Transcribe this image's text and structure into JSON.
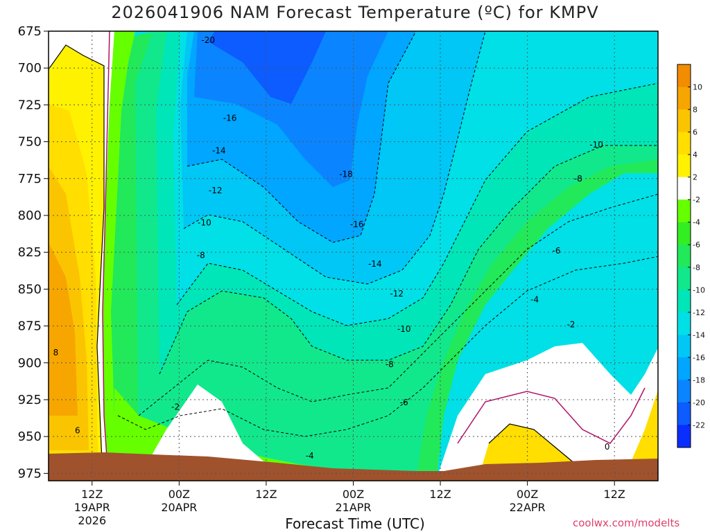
{
  "chart_data": {
    "type": "heatmap",
    "title": "2026041906 NAM Forecast Temperature (ºC) for KMPV",
    "xlabel": "Forecast Time (UTC)",
    "ylabel": "",
    "y_ticks": [
      675,
      700,
      725,
      750,
      775,
      800,
      825,
      850,
      875,
      900,
      925,
      950,
      975
    ],
    "ylim": [
      675,
      980
    ],
    "x_ticks": [
      {
        "line1": "12Z",
        "line2": "19APR",
        "line3": "2026",
        "hours": 6
      },
      {
        "line1": "00Z",
        "line2": "20APR",
        "line3": "",
        "hours": 18
      },
      {
        "line1": "12Z",
        "line2": "",
        "line3": "",
        "hours": 30
      },
      {
        "line1": "00Z",
        "line2": "21APR",
        "line3": "",
        "hours": 42
      },
      {
        "line1": "12Z",
        "line2": "",
        "line3": "",
        "hours": 54
      },
      {
        "line1": "00Z",
        "line2": "22APR",
        "line3": "",
        "hours": 66
      },
      {
        "line1": "12Z",
        "line2": "",
        "line3": "",
        "hours": 78
      }
    ],
    "xlim": [
      0,
      84
    ],
    "grid": true,
    "colorbar": {
      "labels": [
        "10",
        "8",
        "6",
        "4",
        "2",
        "-2",
        "-4",
        "-6",
        "-8",
        "-10",
        "-12",
        "-14",
        "-16",
        "-18",
        "-20",
        "-22"
      ],
      "colors": [
        "#f28c00",
        "#f7a600",
        "#fbc400",
        "#ffde00",
        "#fff200",
        "#ffffff",
        "#66ff00",
        "#33ee22",
        "#22e95a",
        "#11e88c",
        "#00e6b8",
        "#00e0e6",
        "#00c7f5",
        "#00a6ff",
        "#0a85ff",
        "#0c5cff",
        "#0a2eff"
      ]
    },
    "contour_labels": [
      {
        "text": "-20",
        "h": 22,
        "p": 681
      },
      {
        "text": "-16",
        "h": 25,
        "p": 734
      },
      {
        "text": "-14",
        "h": 23.5,
        "p": 756
      },
      {
        "text": "-12",
        "h": 23,
        "p": 783
      },
      {
        "text": "-10",
        "h": 21.5,
        "p": 805
      },
      {
        "text": "-8",
        "h": 21,
        "p": 827
      },
      {
        "text": "-18",
        "h": 41,
        "p": 772
      },
      {
        "text": "-16",
        "h": 42.5,
        "p": 806
      },
      {
        "text": "-14",
        "h": 45,
        "p": 833
      },
      {
        "text": "-12",
        "h": 48,
        "p": 853
      },
      {
        "text": "-10",
        "h": 49,
        "p": 877
      },
      {
        "text": "-8",
        "h": 47,
        "p": 901
      },
      {
        "text": "-6",
        "h": 49,
        "p": 927
      },
      {
        "text": "-4",
        "h": 36,
        "p": 963
      },
      {
        "text": "-2",
        "h": 17.5,
        "p": 930
      },
      {
        "text": "-10",
        "h": 75.5,
        "p": 752
      },
      {
        "text": "-8",
        "h": 73,
        "p": 775
      },
      {
        "text": "-6",
        "h": 70,
        "p": 824
      },
      {
        "text": "-4",
        "h": 67,
        "p": 857
      },
      {
        "text": "-2",
        "h": 72,
        "p": 874
      },
      {
        "text": "0",
        "h": 77,
        "p": 957
      },
      {
        "text": "8",
        "h": 1,
        "p": 893
      },
      {
        "text": "6",
        "h": 4,
        "p": 946
      }
    ]
  },
  "credit": "coolwx.com/modelts"
}
